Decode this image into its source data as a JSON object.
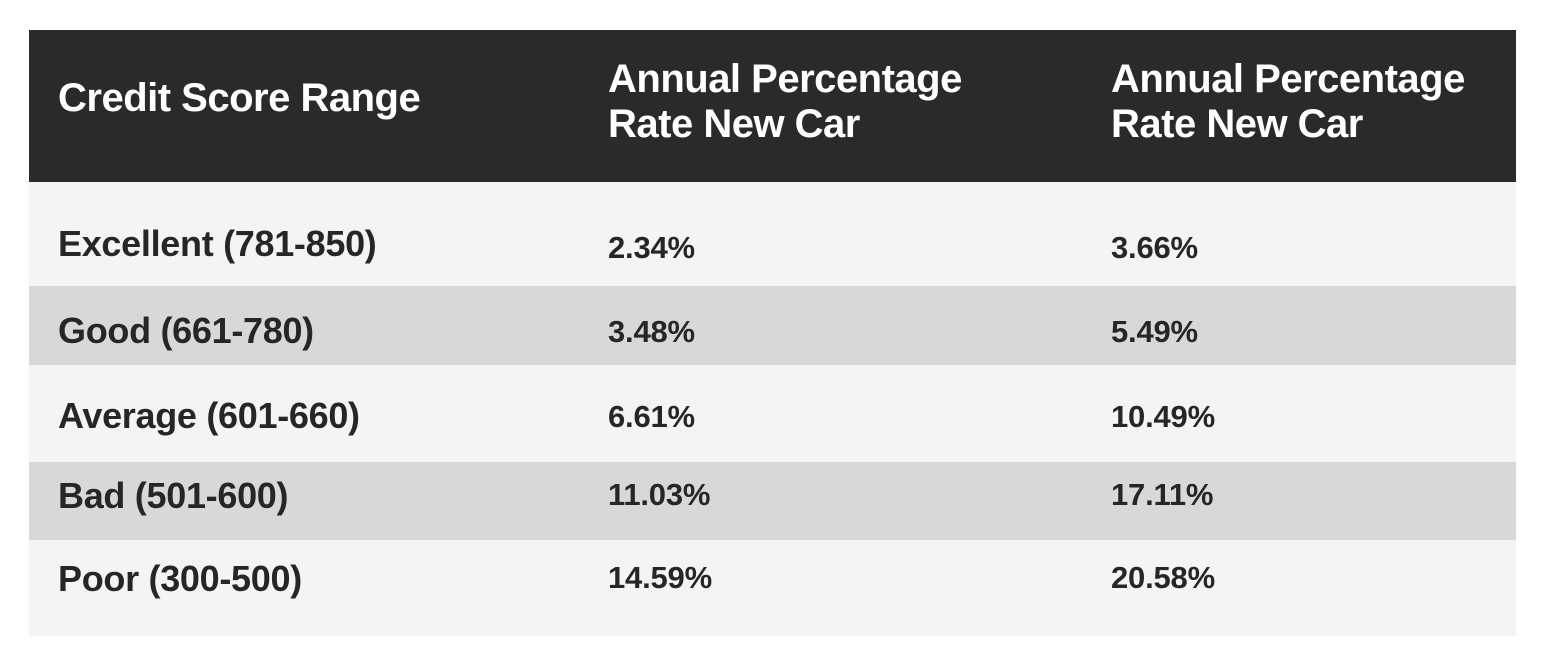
{
  "table": {
    "headers": [
      "Credit Score Range",
      "Annual Percentage Rate New Car",
      "Annual Percentage Rate New Car"
    ],
    "rows": [
      {
        "range": "Excellent (781-850)",
        "rate_a": "2.34%",
        "rate_b": "3.66%"
      },
      {
        "range": "Good (661-780)",
        "rate_a": "3.48%",
        "rate_b": "5.49%"
      },
      {
        "range": "Average (601-660)",
        "rate_a": "6.61%",
        "rate_b": "10.49%"
      },
      {
        "range": "Bad (501-600)",
        "rate_a": "11.03%",
        "rate_b": "17.11%"
      },
      {
        "range": "Poor (300-500)",
        "rate_a": "14.59%",
        "rate_b": "20.58%"
      }
    ]
  },
  "colors": {
    "header_background": "#2a2a2a",
    "header_text": "#ffffff",
    "row_light": "#f4f4f6",
    "row_dark": "#d8d8da",
    "body_text": "#262626"
  }
}
